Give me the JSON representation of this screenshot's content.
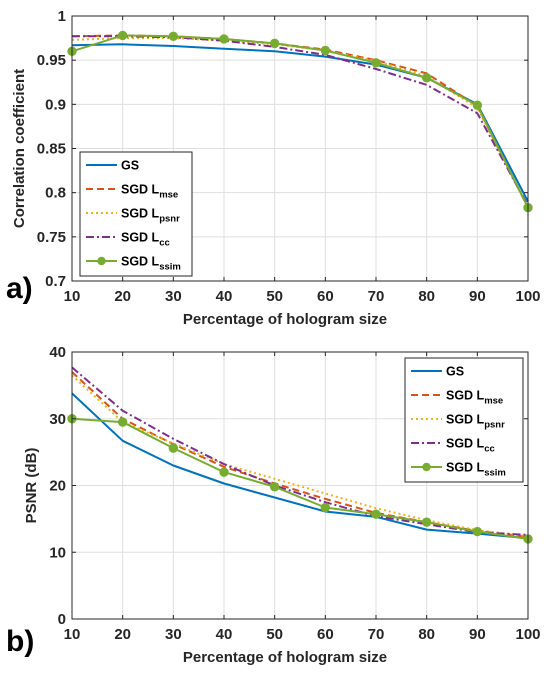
{
  "chart_data": [
    {
      "panel_label": "a)",
      "type": "line",
      "xlabel": "Percentage of hologram size",
      "ylabel": "Correlation coefficient",
      "xlim": [
        10,
        100
      ],
      "ylim": [
        0.7,
        1.0
      ],
      "xticks": [
        "10",
        "20",
        "30",
        "40",
        "50",
        "60",
        "70",
        "80",
        "90",
        "100"
      ],
      "yticks": [
        "0.7",
        "0.75",
        "0.8",
        "0.85",
        "0.9",
        "0.95",
        "1"
      ],
      "legend_position": "bottom-left",
      "x": [
        10,
        20,
        30,
        40,
        50,
        60,
        70,
        80,
        90,
        100
      ],
      "series": [
        {
          "name": "GS",
          "subscript": "",
          "color": "#0072BD",
          "style": "solid",
          "marker": "none",
          "values": [
            0.967,
            0.968,
            0.966,
            0.963,
            0.96,
            0.954,
            0.945,
            0.93,
            0.9,
            0.79
          ]
        },
        {
          "name": "SGD L",
          "subscript": "mse",
          "color": "#D95319",
          "style": "dashed",
          "marker": "none",
          "values": [
            0.977,
            0.978,
            0.977,
            0.974,
            0.969,
            0.962,
            0.95,
            0.935,
            0.898,
            0.783
          ]
        },
        {
          "name": "SGD L",
          "subscript": "psnr",
          "color": "#EDB120",
          "style": "dotted",
          "marker": "none",
          "values": [
            0.973,
            0.975,
            0.975,
            0.972,
            0.968,
            0.961,
            0.949,
            0.932,
            0.896,
            0.783
          ]
        },
        {
          "name": "SGD L",
          "subscript": "cc",
          "color": "#7E2F8E",
          "style": "dashdot",
          "marker": "none",
          "values": [
            0.977,
            0.977,
            0.976,
            0.972,
            0.965,
            0.956,
            0.94,
            0.922,
            0.89,
            0.785
          ]
        },
        {
          "name": "SGD L",
          "subscript": "ssim",
          "color": "#77AC30",
          "style": "solid",
          "marker": "circle",
          "values": [
            0.96,
            0.978,
            0.977,
            0.974,
            0.969,
            0.961,
            0.947,
            0.93,
            0.899,
            0.783
          ]
        }
      ]
    },
    {
      "panel_label": "b)",
      "type": "line",
      "xlabel": "Percentage of hologram size",
      "ylabel": "PSNR (dB)",
      "xlim": [
        10,
        100
      ],
      "ylim": [
        0,
        40
      ],
      "xticks": [
        "10",
        "20",
        "30",
        "40",
        "50",
        "60",
        "70",
        "80",
        "90",
        "100"
      ],
      "yticks": [
        "0",
        "10",
        "20",
        "30",
        "40"
      ],
      "legend_position": "top-right",
      "x": [
        10,
        20,
        30,
        40,
        50,
        60,
        70,
        80,
        90,
        100
      ],
      "series": [
        {
          "name": "GS",
          "subscript": "",
          "color": "#0072BD",
          "style": "solid",
          "marker": "none",
          "values": [
            33.8,
            26.7,
            23.0,
            20.3,
            18.2,
            16.1,
            15.3,
            13.4,
            12.8,
            12.1
          ]
        },
        {
          "name": "SGD L",
          "subscript": "mse",
          "color": "#D95319",
          "style": "dashed",
          "marker": "none",
          "values": [
            37.0,
            30.0,
            26.2,
            22.8,
            20.3,
            18.0,
            15.9,
            14.5,
            13.2,
            12.3
          ]
        },
        {
          "name": "SGD L",
          "subscript": "psnr",
          "color": "#EDB120",
          "style": "dotted",
          "marker": "none",
          "values": [
            36.5,
            29.5,
            26.3,
            23.2,
            21.0,
            18.8,
            16.6,
            14.8,
            13.3,
            12.4
          ]
        },
        {
          "name": "SGD L",
          "subscript": "cc",
          "color": "#7E2F8E",
          "style": "dashdot",
          "marker": "none",
          "values": [
            37.7,
            31.2,
            27.0,
            23.2,
            20.0,
            17.5,
            15.4,
            14.2,
            13.0,
            12.6
          ]
        },
        {
          "name": "SGD L",
          "subscript": "ssim",
          "color": "#77AC30",
          "style": "solid",
          "marker": "circle",
          "values": [
            30.0,
            29.5,
            25.6,
            22.0,
            19.8,
            16.7,
            15.7,
            14.5,
            13.1,
            12.0
          ]
        }
      ]
    }
  ]
}
